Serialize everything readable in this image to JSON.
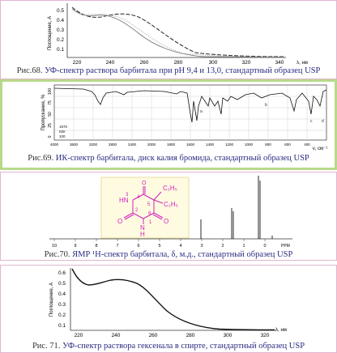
{
  "figures": [
    {
      "fig": "Рис.68.",
      "caption": "УФ-спектр раствора барбитала при рН 9,4 и 13,0, стандартный образец USP",
      "ylabel": "Поглощение, А",
      "yticks": [
        "0.1",
        "0.2",
        "0.3",
        "0.4",
        "0.5"
      ],
      "xticks": [
        "220",
        "240",
        "260",
        "280",
        "300",
        "320",
        "340"
      ],
      "xlabel": "λ, нм"
    },
    {
      "fig": "Рис.69.",
      "caption": "ИК-спектр барбитала, диск калия бромида, стандартный образец USP",
      "ylabel": "Пропускание, %",
      "yticks": [
        "100",
        "75",
        "50",
        "25",
        "0"
      ],
      "xticks": [
        "4000",
        "3600",
        "3200",
        "2800",
        "2400",
        "2000",
        "1800",
        "1600",
        "1400",
        "1200",
        "1000",
        "800",
        "600",
        "400"
      ],
      "xlabel": "ν, см⁻¹",
      "legend": [
        "1970",
        "KBr",
        "100"
      ],
      "peak_letters": [
        "a",
        "b",
        "c",
        "d"
      ]
    },
    {
      "fig": "Рис.70.",
      "caption": "ЯМР ¹Н-спектр барбитала, δ, м.д., стандартный образец USP",
      "xticks": [
        "10",
        "9",
        "8",
        "7",
        "6",
        "5",
        "4",
        "3",
        "2",
        "1",
        "0"
      ],
      "xunit": "PPM",
      "structure_labels": {
        "ethyl_top": "C₂H₅",
        "ethyl_bottom": "C₂H₅",
        "nh_left": "HN",
        "nh_bottom": "N",
        "h_bottom": "H",
        "o_top": "O",
        "o_left": "O",
        "o_right": "O",
        "n1": "1",
        "n2": "2",
        "n3": "3",
        "n4": "4",
        "n5": "5",
        "n6": "6"
      }
    },
    {
      "fig": "Рис. 71.",
      "caption": "УФ-спектр раствора гексенала в спирте, стандартный образец USP",
      "ylabel": "Поглощение, А",
      "yticks": [
        "0.1",
        "0.2",
        "0.3",
        "0.4",
        "0.5",
        "0.6"
      ],
      "xticks": [
        "220",
        "240",
        "260",
        "280",
        "300",
        "320"
      ],
      "xlabel": "λ, нм"
    }
  ],
  "colors": {
    "caption": "#2a2a80",
    "structure": "#d020c0",
    "frame_ir": "#b8d98a",
    "frame": "#e2b5cf"
  }
}
